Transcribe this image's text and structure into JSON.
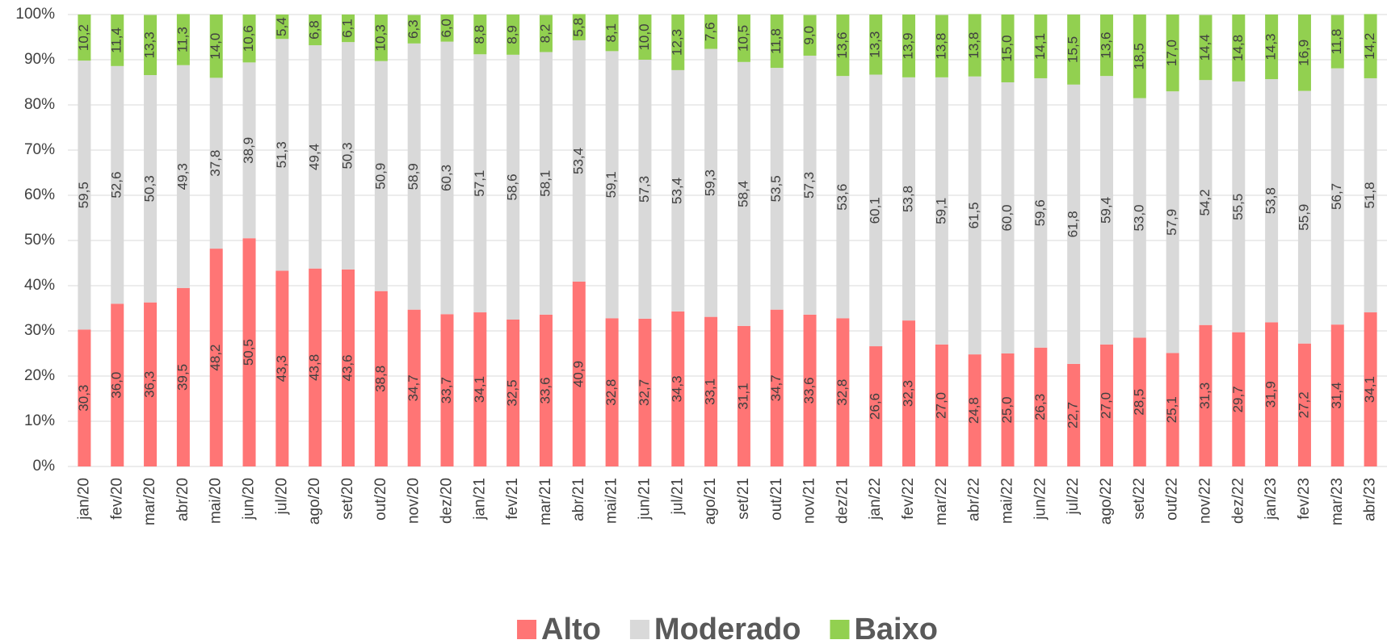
{
  "chart_data": {
    "type": "stacked_bar_percent",
    "categories": [
      "jan/20",
      "fev/20",
      "mar/20",
      "abr/20",
      "mai/20",
      "jun/20",
      "jul/20",
      "ago/20",
      "set/20",
      "out/20",
      "nov/20",
      "dez/20",
      "jan/21",
      "fev/21",
      "mar/21",
      "abr/21",
      "mai/21",
      "jun/21",
      "jul/21",
      "ago/21",
      "set/21",
      "out/21",
      "nov/21",
      "dez/21",
      "jan/22",
      "fev/22",
      "mar/22",
      "abr/22",
      "mai/22",
      "jun/22",
      "jul/22",
      "ago/22",
      "set/22",
      "out/22",
      "nov/22",
      "dez/22",
      "jan/23",
      "fev/23",
      "mar/23",
      "abr/23"
    ],
    "series": [
      {
        "name": "Alto",
        "color": "#ff7575",
        "values": [
          30.3,
          36.0,
          36.3,
          39.5,
          48.2,
          50.5,
          43.3,
          43.8,
          43.6,
          38.8,
          34.7,
          33.7,
          34.1,
          32.5,
          33.6,
          40.9,
          32.8,
          32.7,
          34.3,
          33.1,
          31.1,
          34.7,
          33.6,
          32.8,
          26.6,
          32.3,
          27.0,
          24.8,
          25.0,
          26.3,
          22.7,
          27.0,
          28.5,
          25.1,
          31.3,
          29.7,
          31.9,
          27.2,
          31.4,
          34.1
        ],
        "value_labels": [
          "30,3",
          "36,0",
          "36,3",
          "39,5",
          "48,2",
          "50,5",
          "43,3",
          "43,8",
          "43,6",
          "38,8",
          "34,7",
          "33,7",
          "34,1",
          "32,5",
          "33,6",
          "40,9",
          "32,8",
          "32,7",
          "34,3",
          "33,1",
          "31,1",
          "34,7",
          "33,6",
          "32,8",
          "26,6",
          "32,3",
          "27,0",
          "24,8",
          "25,0",
          "26,3",
          "22,7",
          "27,0",
          "28,5",
          "25,1",
          "31,3",
          "29,7",
          "31,9",
          "27,2",
          "31,4",
          "34,1"
        ]
      },
      {
        "name": "Moderado",
        "color": "#d9d9d9",
        "values": [
          59.5,
          52.6,
          50.3,
          49.3,
          37.8,
          38.9,
          51.3,
          49.4,
          50.3,
          50.9,
          58.9,
          60.3,
          57.1,
          58.6,
          58.1,
          53.4,
          59.1,
          57.3,
          53.4,
          59.3,
          58.4,
          53.5,
          57.3,
          53.6,
          60.1,
          53.8,
          59.1,
          61.5,
          60.0,
          59.6,
          61.8,
          59.4,
          53.0,
          57.9,
          54.2,
          55.5,
          53.8,
          55.9,
          56.7,
          51.8
        ],
        "value_labels": [
          "59,5",
          "52,6",
          "50,3",
          "49,3",
          "37,8",
          "38,9",
          "51,3",
          "49,4",
          "50,3",
          "50,9",
          "58,9",
          "60,3",
          "57,1",
          "58,6",
          "58,1",
          "53,4",
          "59,1",
          "57,3",
          "53,4",
          "59,3",
          "58,4",
          "53,5",
          "57,3",
          "53,6",
          "60,1",
          "53,8",
          "59,1",
          "61,5",
          "60,0",
          "59,6",
          "61,8",
          "59,4",
          "53,0",
          "57,9",
          "54,2",
          "55,5",
          "53,8",
          "55,9",
          "56,7",
          "51,8"
        ]
      },
      {
        "name": "Baixo",
        "color": "#92d050",
        "values": [
          10.2,
          11.4,
          13.3,
          11.3,
          14.0,
          10.6,
          5.4,
          6.8,
          6.1,
          10.3,
          6.3,
          6.0,
          8.8,
          8.9,
          8.2,
          5.8,
          8.1,
          10.0,
          12.3,
          7.6,
          10.5,
          11.8,
          9.0,
          13.6,
          13.3,
          13.9,
          13.8,
          13.8,
          15.0,
          14.1,
          15.5,
          13.6,
          18.5,
          17.0,
          14.4,
          14.8,
          14.3,
          16.9,
          11.8,
          14.2
        ],
        "value_labels": [
          "10,2",
          "11,4",
          "13,3",
          "11,3",
          "14,0",
          "10,6",
          "5,4",
          "6,8",
          "6,1",
          "10,3",
          "6,3",
          "6,0",
          "8,8",
          "8,9",
          "8,2",
          "5,8",
          "8,1",
          "10,0",
          "12,3",
          "7,6",
          "10,5",
          "11,8",
          "9,0",
          "13,6",
          "13,3",
          "13,9",
          "13,8",
          "13,8",
          "15,0",
          "14,1",
          "15,5",
          "13,6",
          "18,5",
          "17,0",
          "14,4",
          "14,8",
          "14,3",
          "16,9",
          "11,8",
          "14,2"
        ]
      }
    ],
    "ylim": [
      0,
      100
    ],
    "yticks": [
      {
        "value": 0,
        "label": "0%"
      },
      {
        "value": 10,
        "label": "10%"
      },
      {
        "value": 20,
        "label": "20%"
      },
      {
        "value": 30,
        "label": "30%"
      },
      {
        "value": 40,
        "label": "40%"
      },
      {
        "value": 50,
        "label": "50%"
      },
      {
        "value": 60,
        "label": "60%"
      },
      {
        "value": 70,
        "label": "70%"
      },
      {
        "value": 80,
        "label": "80%"
      },
      {
        "value": 90,
        "label": "90%"
      },
      {
        "value": 100,
        "label": "100%"
      }
    ],
    "grid": true,
    "legend": "bottom"
  }
}
